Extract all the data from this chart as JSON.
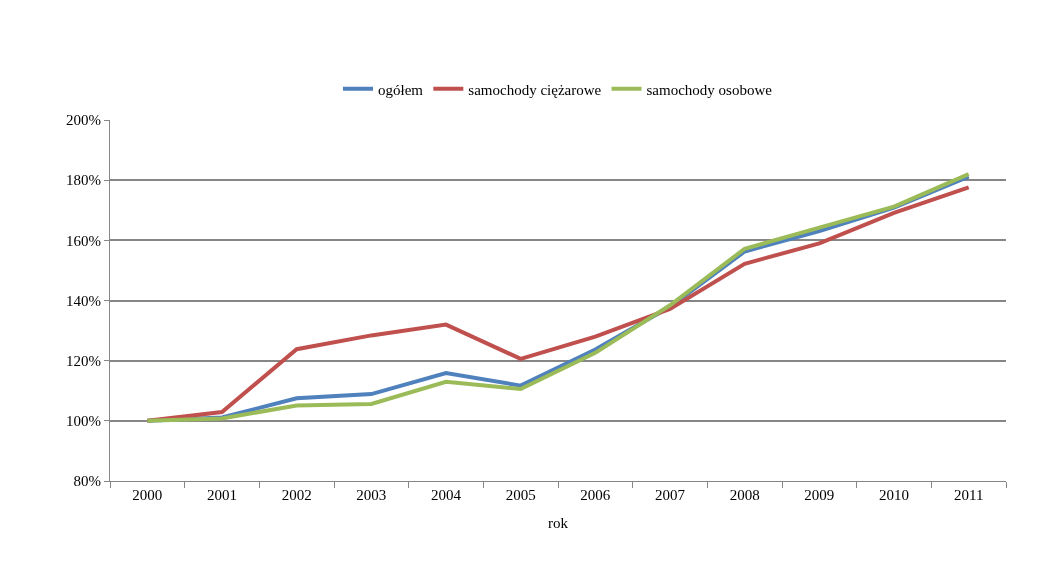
{
  "chart_data": {
    "type": "line",
    "xlabel": "rok",
    "categories": [
      "2000",
      "2001",
      "2002",
      "2003",
      "2004",
      "2005",
      "2006",
      "2007",
      "2008",
      "2009",
      "2010",
      "2011"
    ],
    "series": [
      {
        "name": "ogółem",
        "color": "#4f81bd",
        "values": [
          100,
          101.1,
          107.5,
          108.9,
          115.9,
          111.7,
          123.7,
          137.9,
          156.3,
          163.1,
          170.9,
          181.2
        ]
      },
      {
        "name": "samochody ciężarowe",
        "color": "#c0504d",
        "values": [
          100,
          102.9,
          123.8,
          128.4,
          132.0,
          120.6,
          128.0,
          137.2,
          152.2,
          159.0,
          169.1,
          177.6
        ]
      },
      {
        "name": "samochody osobowe",
        "color": "#9bbb59",
        "values": [
          100,
          100.8,
          105.1,
          105.6,
          113.0,
          110.6,
          122.6,
          138.4,
          157.2,
          164.2,
          171.2,
          182.0
        ]
      }
    ],
    "ylim": [
      80,
      200
    ],
    "yticks": [
      {
        "value": 80,
        "label": "80%"
      },
      {
        "value": 100,
        "label": "100%"
      },
      {
        "value": 120,
        "label": "120%"
      },
      {
        "value": 140,
        "label": "140%"
      },
      {
        "value": 160,
        "label": "160%"
      },
      {
        "value": 180,
        "label": "180%"
      },
      {
        "value": 200,
        "label": "200%"
      }
    ],
    "grid": "y",
    "legend": "top",
    "marker": "none",
    "line_style": "solid"
  }
}
